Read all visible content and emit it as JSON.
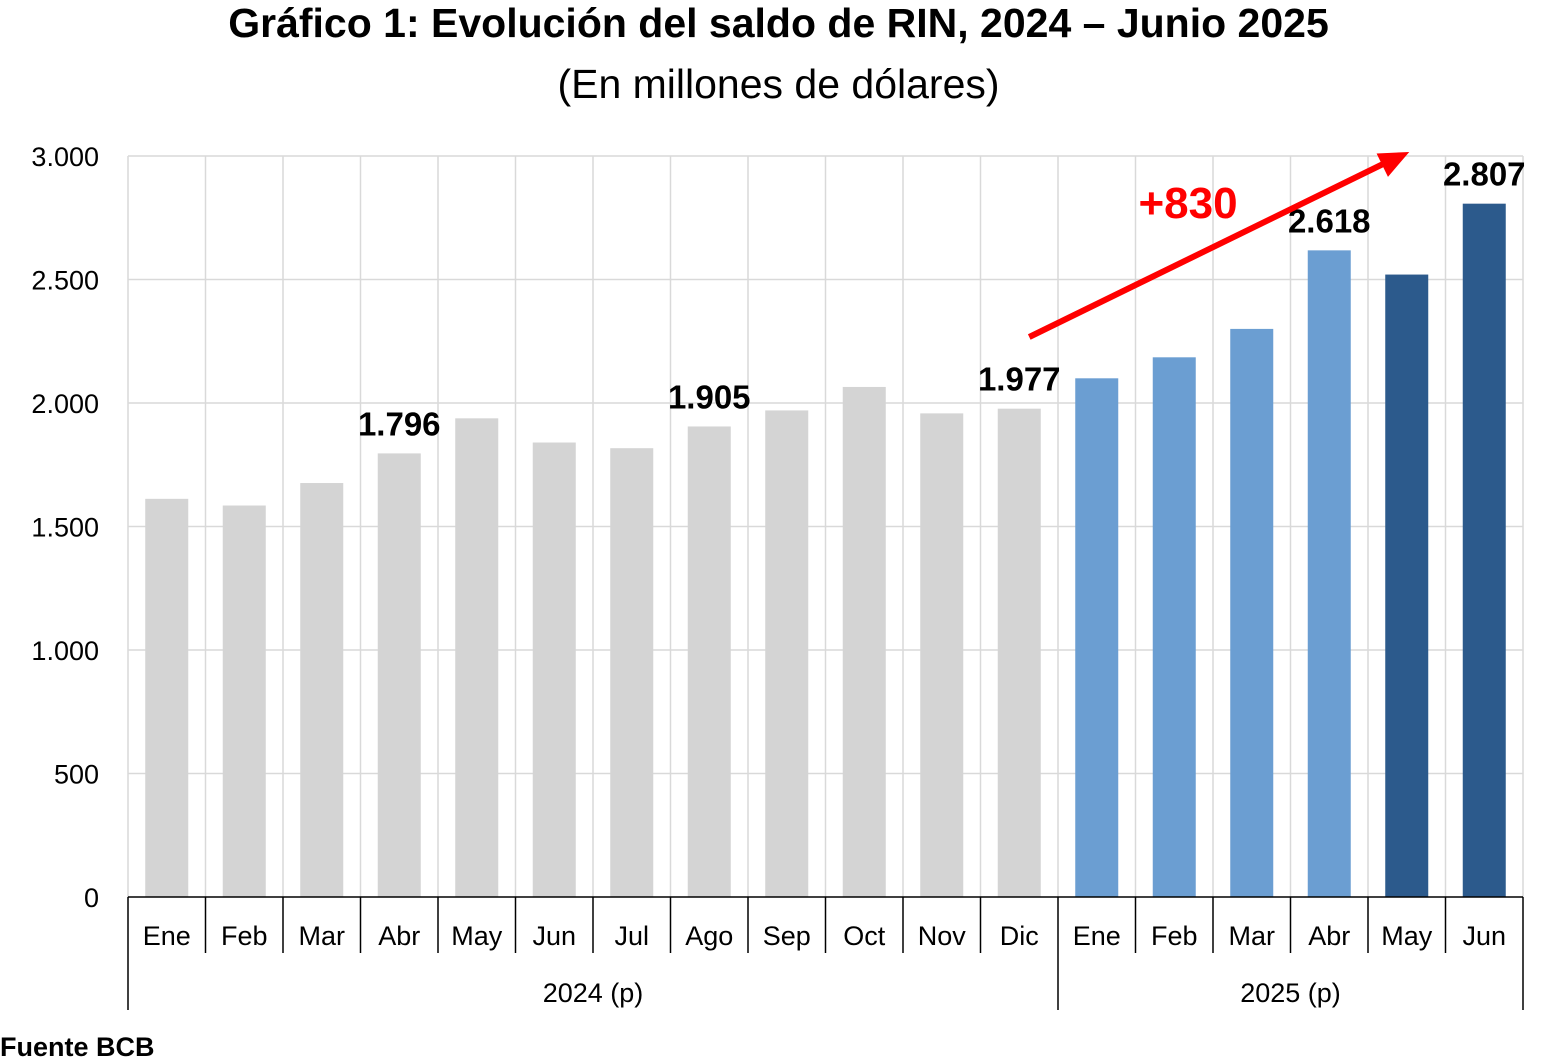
{
  "title": "Gráfico 1: Evolución del saldo de RIN, 2024 – Junio 2025",
  "subtitle": "(En millones de dólares)",
  "source": "Fuente BCB",
  "chart_data": {
    "type": "bar",
    "ylim": [
      0,
      3000
    ],
    "yticks": [
      0,
      500,
      1000,
      1500,
      2000,
      2500,
      3000
    ],
    "ytick_labels": [
      "0",
      "500",
      "1.000",
      "1.500",
      "2.000",
      "2.500",
      "3.000"
    ],
    "grid": true,
    "categories": [
      "Ene",
      "Feb",
      "Mar",
      "Abr",
      "May",
      "Jun",
      "Jul",
      "Ago",
      "Sep",
      "Oct",
      "Nov",
      "Dic",
      "Ene",
      "Feb",
      "Mar",
      "Abr",
      "May",
      "Jun"
    ],
    "groups": [
      {
        "label": "2024 (p)",
        "count": 12
      },
      {
        "label": "2025 (p)",
        "count": 6
      }
    ],
    "values": [
      1612,
      1585,
      1676,
      1796,
      1938,
      1840,
      1817,
      1905,
      1970,
      2065,
      1958,
      1977,
      2100,
      2185,
      2300,
      2618,
      2520,
      2807
    ],
    "bar_colors": [
      "#d4d4d4",
      "#d4d4d4",
      "#d4d4d4",
      "#d4d4d4",
      "#d4d4d4",
      "#d4d4d4",
      "#d4d4d4",
      "#d4d4d4",
      "#d4d4d4",
      "#d4d4d4",
      "#d4d4d4",
      "#d4d4d4",
      "#6b9ed2",
      "#6b9ed2",
      "#6b9ed2",
      "#6b9ed2",
      "#2c5a8c",
      "#2c5a8c"
    ],
    "data_labels": [
      {
        "index": 3,
        "text": "1.796"
      },
      {
        "index": 7,
        "text": "1.905"
      },
      {
        "index": 11,
        "text": "1.977"
      },
      {
        "index": 15,
        "text": "2.618"
      },
      {
        "index": 17,
        "text": "2.807"
      }
    ],
    "annotation": {
      "text": "+830",
      "color": "#ff0000",
      "from_index": 11,
      "to_index": 17
    }
  }
}
